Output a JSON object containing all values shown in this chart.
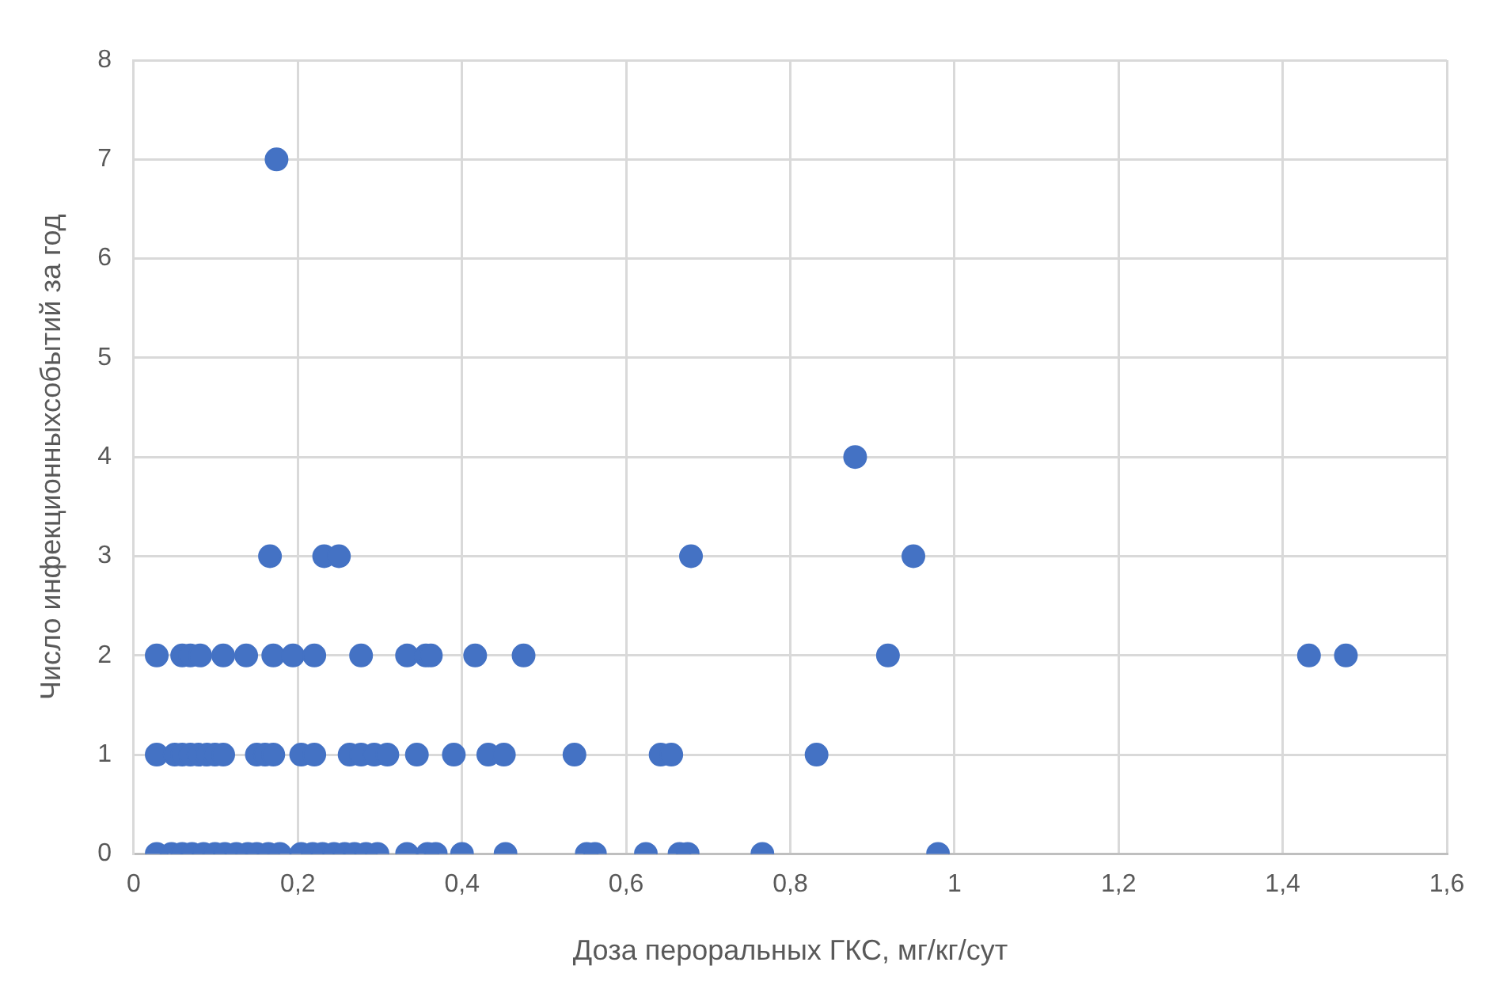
{
  "chart_data": {
    "type": "scatter",
    "xlabel": "Доза пероральных ГКС, мг/кг/сут",
    "ylabel": "Число инфекционныхсобытий за год",
    "series": [
      {
        "color": "#4472c4",
        "x": [
          0.028,
          0.059,
          0.069,
          0.081,
          0.109,
          0.137,
          0.17,
          0.194,
          0.22,
          0.277,
          0.333,
          0.356,
          0.362,
          0.416,
          0.475,
          0.919,
          1.432,
          1.477,
          0.028,
          0.05,
          0.059,
          0.069,
          0.079,
          0.089,
          0.099,
          0.109,
          0.15,
          0.16,
          0.17,
          0.204,
          0.22,
          0.263,
          0.277,
          0.293,
          0.309,
          0.345,
          0.39,
          0.432,
          0.451,
          0.537,
          0.642,
          0.655,
          0.832,
          0.028,
          0.046,
          0.059,
          0.071,
          0.085,
          0.099,
          0.111,
          0.125,
          0.139,
          0.15,
          0.164,
          0.178,
          0.204,
          0.218,
          0.23,
          0.244,
          0.257,
          0.269,
          0.283,
          0.297,
          0.333,
          0.358,
          0.368,
          0.4,
          0.453,
          0.552,
          0.562,
          0.624,
          0.665,
          0.675,
          0.766,
          0.98,
          0.166,
          0.232,
          0.25,
          0.679,
          0.95,
          0.879,
          0.174
        ],
        "values": [
          2,
          2,
          2,
          2,
          2,
          2,
          2,
          2,
          2,
          2,
          2,
          2,
          2,
          2,
          2,
          2,
          2,
          2,
          1,
          1,
          1,
          1,
          1,
          1,
          1,
          1,
          1,
          1,
          1,
          1,
          1,
          1,
          1,
          1,
          1,
          1,
          1,
          1,
          1,
          1,
          1,
          1,
          1,
          0,
          0,
          0,
          0,
          0,
          0,
          0,
          0,
          0,
          0,
          0,
          0,
          0,
          0,
          0,
          0,
          0,
          0,
          0,
          0,
          0,
          0,
          0,
          0,
          0,
          0,
          0,
          0,
          0,
          0,
          0,
          0,
          3,
          3,
          3,
          3,
          3,
          4,
          7
        ]
      }
    ],
    "xlim": [
      0,
      1.6
    ],
    "xticks": [
      0,
      {
        "value": 0.2,
        "label": "0,2"
      },
      {
        "value": 0.4,
        "label": "0,4"
      },
      {
        "value": 0.6,
        "label": "0,6"
      },
      {
        "value": 0.8,
        "label": "0,8"
      },
      1,
      {
        "value": 1.2,
        "label": "1,2"
      },
      {
        "value": 1.4,
        "label": "1,4"
      },
      {
        "value": 1.6,
        "label": "1,6"
      }
    ],
    "ylim": [
      0,
      8
    ],
    "yticks": [
      0,
      1,
      2,
      3,
      4,
      5,
      6,
      7,
      8
    ],
    "grid": true,
    "legend": false,
    "marker": "circle"
  }
}
